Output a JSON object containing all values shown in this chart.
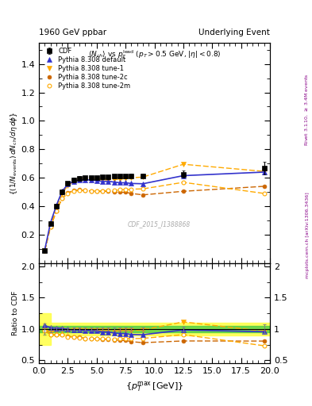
{
  "title_left": "1960 GeV ppbar",
  "title_right": "Underlying Event",
  "subtitle": "$\\langle N_{ch}\\rangle$ vs $p_T^{\\mathrm{lead}}$ ($p_T > 0.5$ GeV, $|\\eta| < 0.8$)",
  "watermark": "CDF_2015_I1388868",
  "ylabel_main": "$(1/N_{\\mathrm{events}})\\, dN_{ch}/d\\eta\\, d\\phi$",
  "ylabel_ratio": "Ratio to CDF",
  "xlabel": "$\\{p_T^{\\mathrm{max}}\\, [\\mathrm{GeV}]\\}$",
  "right_label_top": "Rivet 3.1.10, $\\geq$ 3.4M events",
  "right_label_bot": "mcplots.cern.ch [arXiv:1306.3436]",
  "xlim": [
    0,
    20
  ],
  "ylim_main": [
    0,
    1.55
  ],
  "ylim_ratio": [
    0.45,
    2.05
  ],
  "yticks_main": [
    0.2,
    0.4,
    0.6,
    0.8,
    1.0,
    1.2,
    1.4
  ],
  "yticks_ratio": [
    0.5,
    1.0,
    1.5,
    2.0
  ],
  "cdf_x": [
    0.5,
    1.0,
    1.5,
    2.0,
    2.5,
    3.0,
    3.5,
    4.0,
    4.5,
    5.0,
    5.5,
    6.0,
    6.5,
    7.0,
    7.5,
    8.0,
    9.0,
    12.5,
    19.5
  ],
  "cdf_y": [
    0.09,
    0.28,
    0.4,
    0.5,
    0.56,
    0.585,
    0.595,
    0.6,
    0.6,
    0.6,
    0.605,
    0.605,
    0.61,
    0.61,
    0.61,
    0.615,
    0.615,
    0.625,
    0.67
  ],
  "cdf_yerr": [
    0.008,
    0.015,
    0.015,
    0.015,
    0.015,
    0.015,
    0.015,
    0.015,
    0.015,
    0.015,
    0.015,
    0.015,
    0.015,
    0.015,
    0.015,
    0.015,
    0.015,
    0.025,
    0.045
  ],
  "py_default_x": [
    0.5,
    1.0,
    1.5,
    2.0,
    2.5,
    3.0,
    3.5,
    4.0,
    4.5,
    5.0,
    5.5,
    6.0,
    6.5,
    7.0,
    7.5,
    8.0,
    9.0,
    12.5,
    19.5
  ],
  "py_default_y": [
    0.095,
    0.285,
    0.405,
    0.505,
    0.555,
    0.575,
    0.585,
    0.585,
    0.585,
    0.58,
    0.575,
    0.575,
    0.57,
    0.565,
    0.565,
    0.56,
    0.558,
    0.615,
    0.64
  ],
  "py_tune1_x": [
    0.5,
    1.0,
    1.5,
    2.0,
    2.5,
    3.0,
    3.5,
    4.0,
    4.5,
    5.0,
    5.5,
    6.0,
    6.5,
    7.0,
    7.5,
    8.0,
    9.0,
    12.5,
    19.5
  ],
  "py_tune1_y": [
    0.09,
    0.265,
    0.39,
    0.49,
    0.545,
    0.575,
    0.585,
    0.585,
    0.585,
    0.585,
    0.585,
    0.585,
    0.588,
    0.59,
    0.595,
    0.6,
    0.605,
    0.695,
    0.645
  ],
  "py_tune2c_x": [
    0.5,
    1.0,
    1.5,
    2.0,
    2.5,
    3.0,
    3.5,
    4.0,
    4.5,
    5.0,
    5.5,
    6.0,
    6.5,
    7.0,
    7.5,
    8.0,
    9.0,
    12.5,
    19.5
  ],
  "py_tune2c_y": [
    0.088,
    0.255,
    0.365,
    0.455,
    0.495,
    0.51,
    0.515,
    0.51,
    0.508,
    0.505,
    0.505,
    0.505,
    0.5,
    0.498,
    0.498,
    0.49,
    0.48,
    0.505,
    0.54
  ],
  "py_tune2m_x": [
    0.5,
    1.0,
    1.5,
    2.0,
    2.5,
    3.0,
    3.5,
    4.0,
    4.5,
    5.0,
    5.5,
    6.0,
    6.5,
    7.0,
    7.5,
    8.0,
    9.0,
    12.5,
    19.5
  ],
  "py_tune2m_y": [
    0.088,
    0.255,
    0.365,
    0.455,
    0.49,
    0.508,
    0.51,
    0.51,
    0.508,
    0.508,
    0.508,
    0.51,
    0.51,
    0.515,
    0.518,
    0.52,
    0.522,
    0.568,
    0.49
  ],
  "color_cdf": "#000000",
  "color_blue": "#3333cc",
  "color_orange": "#ffaa00",
  "color_darkorange": "#cc6600",
  "figsize": [
    3.93,
    5.12
  ],
  "dpi": 100
}
